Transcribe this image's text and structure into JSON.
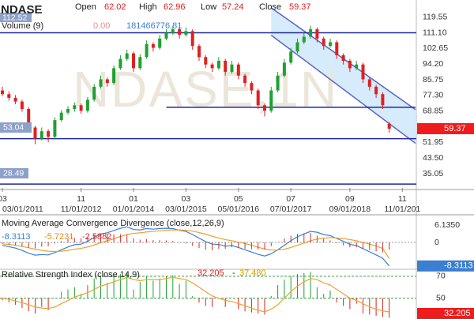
{
  "header": {
    "symbol": "NDASE",
    "open_label": "Open",
    "high_label": "High",
    "low_label": "Low",
    "close_label": "Close",
    "volume_label": "Volume (9)",
    "volume_values": [
      "0.00",
      181466776.81
    ],
    "volume_marker": "112.52",
    "level_marker": "53.04",
    "volume_low": "28.49"
  },
  "watermark": "NDASE,1N",
  "chart_data": [
    {
      "type": "candlestick",
      "up_color": "#20a030",
      "down_color": "#e02020",
      "ohlc": [
        [
          80,
          82,
          77,
          78
        ],
        [
          78,
          79.5,
          74.5,
          76
        ],
        [
          76,
          77.5,
          72.5,
          74
        ],
        [
          74,
          75,
          68.5,
          70
        ],
        [
          70,
          71,
          58,
          60
        ],
        [
          60,
          61,
          51,
          54
        ],
        [
          54,
          60,
          53,
          58
        ],
        [
          58,
          59,
          52,
          55
        ],
        [
          55,
          65.5,
          54,
          64
        ],
        [
          64,
          69.5,
          63,
          68
        ],
        [
          68,
          71.5,
          67,
          70
        ],
        [
          70,
          73.5,
          68.5,
          72
        ],
        [
          72,
          73,
          67.5,
          69
        ],
        [
          69,
          76.5,
          68,
          75
        ],
        [
          75,
          83.5,
          74,
          82
        ],
        [
          82,
          88,
          81,
          86
        ],
        [
          86,
          87,
          82,
          84
        ],
        [
          84,
          93.5,
          83,
          92
        ],
        [
          92,
          99,
          91,
          97
        ],
        [
          97,
          102,
          96,
          100
        ],
        [
          100,
          101,
          90,
          92
        ],
        [
          92,
          99.5,
          91,
          98
        ],
        [
          98,
          107,
          97,
          105
        ],
        [
          105,
          106,
          101,
          103
        ],
        [
          103,
          110,
          102,
          108
        ],
        [
          108,
          113,
          107,
          111
        ],
        [
          111,
          115,
          110,
          113
        ],
        [
          113,
          114,
          108,
          110
        ],
        [
          110,
          114,
          109,
          112
        ],
        [
          112,
          113,
          102,
          104
        ],
        [
          104,
          105,
          96,
          98
        ],
        [
          98,
          99,
          92,
          94
        ],
        [
          94,
          95,
          90,
          92
        ],
        [
          92,
          98,
          91,
          96
        ],
        [
          96,
          97,
          88,
          90
        ],
        [
          90,
          96,
          89,
          94
        ],
        [
          94,
          95,
          86,
          88
        ],
        [
          88,
          89,
          82,
          84
        ],
        [
          84,
          85,
          78,
          80
        ],
        [
          80,
          81,
          70,
          72
        ],
        [
          72,
          73,
          66,
          69
        ],
        [
          69,
          82,
          68,
          80
        ],
        [
          80,
          90,
          79,
          88
        ],
        [
          88,
          97,
          87,
          95
        ],
        [
          95,
          103,
          94,
          101
        ],
        [
          101,
          108,
          100,
          106
        ],
        [
          106,
          111,
          105,
          109
        ],
        [
          109,
          115,
          108,
          113
        ],
        [
          113,
          114,
          106,
          108
        ],
        [
          108,
          109,
          102,
          104
        ],
        [
          104,
          108,
          103,
          106
        ],
        [
          106,
          107,
          97,
          99
        ],
        [
          99,
          100,
          94,
          96
        ],
        [
          96,
          97,
          90,
          92
        ],
        [
          92,
          96,
          91,
          94
        ],
        [
          94,
          95,
          84,
          86
        ],
        [
          86,
          87,
          80,
          82
        ],
        [
          82,
          83,
          76,
          78
        ],
        [
          78,
          79,
          70,
          72
        ],
        [
          62.02,
          62.96,
          57.24,
          59.37
        ]
      ],
      "ylim": [
        27.4,
        128.8
      ],
      "yticks": [
        119.55,
        {
          "value": 111.1,
          "label": "111.10"
        },
        102.65,
        {
          "value": 94.2,
          "label": "94.20"
        },
        85.75,
        {
          "value": 77.3,
          "label": "77.30"
        },
        68.85,
        51.95,
        {
          "value": 43.5,
          "label": "43.50"
        },
        35.05
      ],
      "xticks": [
        {
          "value": 0,
          "label": "03"
        },
        {
          "value": 12,
          "label": "11"
        },
        {
          "value": 20,
          "label": "01"
        },
        {
          "value": 28,
          "label": "03"
        },
        {
          "value": 36,
          "label": "05"
        },
        {
          "value": 44,
          "label": "07"
        },
        {
          "value": 53,
          "label": "09"
        },
        {
          "value": 61,
          "label": "11"
        }
      ],
      "x_dates": [
        "03/01/2011",
        "11/01/2012",
        "01/01/2014",
        "03/01/2015",
        "05/01/2016",
        "07/01/2017",
        "09/01/2018",
        "11/01/201"
      ],
      "levels": [
        111.1,
        54,
        29.5
      ],
      "partial_levels": [
        {
          "value": 70.9,
          "x": [
            25,
            63
          ]
        }
      ],
      "channel": {
        "upper": {
          "x": [
            41,
            63
          ],
          "y": [
            124.6,
            69.7
          ]
        },
        "lower": {
          "x": [
            41,
            63
          ],
          "y": [
            109.8,
            51.5
          ]
        },
        "color": "#5a66c8",
        "fill": "#cfe8fa"
      },
      "level_color": "#1f2a9a"
    },
    {
      "type": "macd",
      "title": "Moving Average Convergence Divergence (close,12,26,9)",
      "ylim": [
        -9.2,
        8.1
      ],
      "yticks": [
        {
          "value": 6.135,
          "label": "6.1350"
        },
        0
      ],
      "grid": true,
      "series": [
        {
          "color": "#3a7fd0",
          "kind": "line",
          "values": [
            -1,
            -1.5,
            -2,
            -2.8,
            -3.8,
            -4.5,
            -4.3,
            -4.4,
            -3.6,
            -2.6,
            -1.6,
            -0.8,
            -0.6,
            0.4,
            1.8,
            3,
            3.4,
            4.2,
            5,
            5.5,
            4.6,
            4.4,
            4.9,
            4.7,
            4.9,
            5,
            4.9,
            4.3,
            3.9,
            2.8,
            1.5,
            0.3,
            -0.6,
            -0.7,
            -1.3,
            -1.1,
            -1.8,
            -2.6,
            -3.4,
            -4.2,
            -4.8,
            -4,
            -2.6,
            -1,
            0.6,
            2,
            3,
            3.9,
            3.6,
            2.8,
            2.4,
            1.4,
            0.4,
            -0.7,
            -1.1,
            -2.2,
            -3.3,
            -4.4,
            -5.6,
            -8.3113
          ]
        },
        {
          "color": "#f0a030",
          "kind": "line",
          "values": [
            -0.5,
            -0.7,
            -1,
            -1.4,
            -1.9,
            -2.4,
            -2.8,
            -3.1,
            -3.2,
            -3.1,
            -2.8,
            -2.4,
            -2.1,
            -1.6,
            -0.9,
            -0.1,
            0.6,
            1.3,
            2.1,
            2.8,
            3.2,
            3.4,
            3.7,
            3.9,
            4.1,
            4.3,
            4.4,
            4.4,
            4.3,
            4,
            3.5,
            2.9,
            2.2,
            1.6,
            1,
            0.6,
            0.1,
            -0.4,
            -1,
            -1.7,
            -2.3,
            -2.7,
            -2.7,
            -2.4,
            -1.8,
            -1,
            -0.2,
            0.6,
            1.2,
            1.5,
            1.7,
            1.6,
            1.4,
            1,
            0.6,
            0,
            -0.6,
            -1.3,
            -2.1,
            -5.7231
          ]
        },
        {
          "color": "#d03030",
          "kind": "bar",
          "values": [
            -0.5,
            -0.8,
            -1,
            -1.4,
            -1.9,
            -2.1,
            -1.5,
            -1.3,
            -0.4,
            0.5,
            1.2,
            1.6,
            1.5,
            2,
            2.7,
            3.1,
            2.8,
            2.9,
            2.9,
            2.7,
            1.4,
            1,
            1.2,
            0.8,
            0.8,
            0.7,
            0.5,
            -0.1,
            -0.4,
            -1.2,
            -2,
            -2.6,
            -2.8,
            -2.3,
            -2.3,
            -1.7,
            -1.9,
            -2.2,
            -2.4,
            -2.5,
            -2.5,
            -1.3,
            0.1,
            1.4,
            2.4,
            3,
            3.2,
            3.3,
            2.4,
            1.3,
            0.7,
            -0.2,
            -1,
            -1.7,
            -1.7,
            -2.2,
            -2.7,
            -3.1,
            -3.5,
            -2.5882
          ]
        }
      ]
    },
    {
      "type": "rsi",
      "title": "Relative Strength Index (close,14,9)",
      "separator": "-",
      "ylim": [
        31,
        75
      ],
      "yticks": [
        70,
        50
      ],
      "grid": true,
      "base": 50,
      "up_color": "#20a030",
      "down_color": "#e02020",
      "series": [
        {
          "color": "#e02020",
          "kind": "bar",
          "values": [
            48,
            46,
            44,
            41,
            38,
            36,
            42,
            39,
            50,
            56,
            58,
            60,
            54,
            62,
            68,
            70,
            64,
            70,
            72,
            73,
            58,
            65,
            70,
            66,
            68,
            70,
            71,
            63,
            66,
            52,
            46,
            43,
            42,
            50,
            42,
            50,
            40,
            38,
            37,
            36,
            35,
            52,
            62,
            67,
            70,
            72,
            73,
            74,
            60,
            54,
            57,
            46,
            43,
            40,
            45,
            36,
            35,
            34,
            33,
            32.205
          ]
        },
        {
          "color": "#f0a030",
          "kind": "line",
          "values": [
            50,
            49,
            47.5,
            46,
            44,
            42,
            41,
            40.5,
            42,
            45,
            48,
            51,
            53,
            55,
            58,
            61,
            63,
            65,
            67,
            69,
            67,
            66,
            67,
            67,
            67,
            68,
            69,
            68,
            67,
            64,
            60,
            56,
            52,
            50,
            48,
            47,
            45,
            43,
            41,
            39,
            37.5,
            40,
            44,
            50,
            56,
            61,
            65,
            68,
            67,
            64,
            62,
            58,
            54,
            50,
            48,
            45,
            42,
            40,
            38.5,
            37.48
          ],
          "value_labels": [
            null,
            null,
            null,
            null,
            null,
            null,
            null,
            null,
            null,
            null,
            null,
            null,
            null,
            null,
            null,
            null,
            null,
            null,
            null,
            null,
            null,
            null,
            null,
            null,
            null,
            null,
            null,
            null,
            null,
            null,
            null,
            null,
            null,
            null,
            null,
            null,
            null,
            null,
            null,
            null,
            null,
            null,
            null,
            null,
            null,
            null,
            null,
            null,
            null,
            null,
            null,
            null,
            null,
            null,
            null,
            null,
            null,
            null,
            null,
            "37.480"
          ]
        }
      ]
    }
  ]
}
